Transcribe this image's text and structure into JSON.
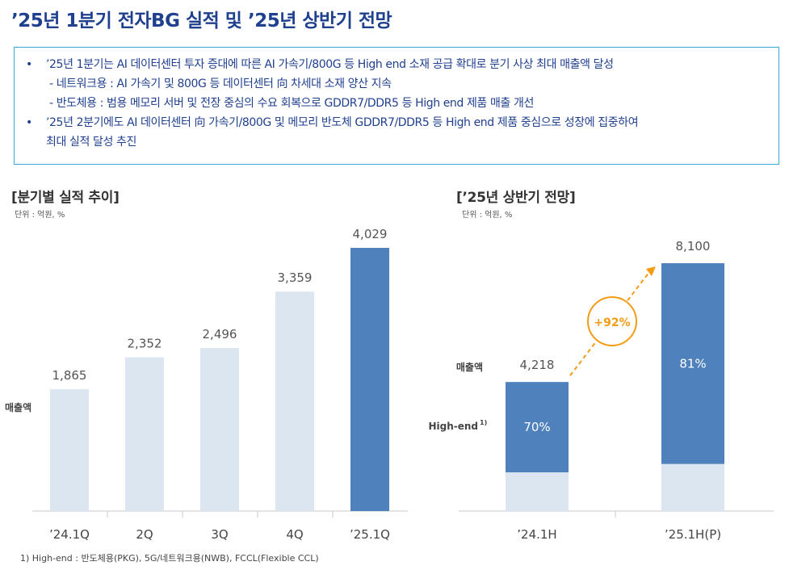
{
  "title": "’25년 1분기 전자BG 실적 및 ’25년 상반기 전망",
  "summary": {
    "lines": [
      {
        "kind": "bullet",
        "text": "’25년 1분기는 AI 데이터센터 투자 증대에 따른 AI 가속기/800G 등 High end 소재 공급 확대로 분기 사상 최대 매출액 달성"
      },
      {
        "kind": "sub",
        "text": "- 네트워크용 : AI 가속기 및 800G 등 데이터센터 向 차세대 소재 양산 지속"
      },
      {
        "kind": "sub",
        "text": "- 반도체용 : 범용 메모리 서버 및 전장 중심의 수요 회복으로  GDDR7/DDR5 등 High end 제품 매출 개선"
      },
      {
        "kind": "bullet",
        "text": "’25년 2분기에도 AI 데이터센터 向 가속기/800G 및 메모리 반도체 GDDR7/DDR5 등 High end 제품 중심으로 성장에 집중하여"
      },
      {
        "kind": "cont",
        "text": "최대 실적 달성 추진"
      }
    ]
  },
  "left_title": "[분기별 실적 추이]",
  "right_title": "[’25년 상반기 전망]",
  "unit_label": "단위 : 억원, %",
  "footnote": "1) High-end : 반도체용(PKG), 5G/네트워크용(NWB), FCCL(Flexible CCL)",
  "colors": {
    "light": "#dce6f1",
    "dark": "#4f81bd",
    "accent": "#f39c12",
    "title": "#1f3f8f"
  },
  "chart_data": [
    {
      "type": "bar",
      "title": "[분기별 실적 추이]",
      "unit": "단위 : 억원, %",
      "row_label": "매출액",
      "categories": [
        "’24.1Q",
        "2Q",
        "3Q",
        "4Q",
        "’25.1Q"
      ],
      "values": [
        1865,
        2352,
        2496,
        3359,
        4029
      ],
      "value_labels": [
        "1,865",
        "2,352",
        "2,496",
        "3,359",
        "4,029"
      ],
      "highlight_index": 4,
      "ylim": [
        0,
        4500
      ]
    },
    {
      "type": "bar",
      "stacked": true,
      "title": "[’25년 상반기 전망]",
      "unit": "단위 : 억원, %",
      "row_labels": {
        "total": "매출액",
        "high_end": "High-end",
        "high_end_sup": "1)"
      },
      "categories": [
        "’24.1H",
        "’25.1H(P)"
      ],
      "totals": [
        4218,
        8100
      ],
      "total_labels": [
        "4,218",
        "8,100"
      ],
      "high_end_share": [
        70,
        81
      ],
      "share_labels": [
        "70%",
        "81%"
      ],
      "growth_label": "+92%",
      "ylim": [
        0,
        9000
      ]
    }
  ]
}
